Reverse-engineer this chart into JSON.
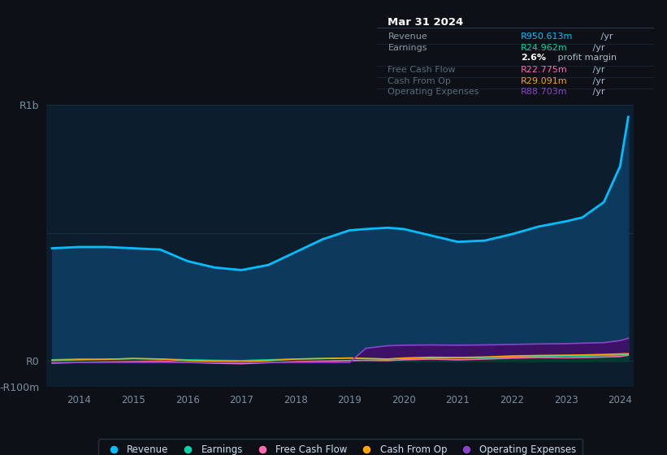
{
  "bg_color": "#0d1117",
  "chart_area_color": "#0c1e2e",
  "years": [
    2013.5,
    2014,
    2014.5,
    2015,
    2015.5,
    2016,
    2016.5,
    2017,
    2017.5,
    2018,
    2018.5,
    2019,
    2019.3,
    2019.7,
    2020,
    2020.5,
    2021,
    2021.5,
    2022,
    2022.5,
    2023,
    2023.3,
    2023.7,
    2024,
    2024.15
  ],
  "revenue": [
    440,
    445,
    445,
    440,
    435,
    390,
    365,
    355,
    375,
    425,
    475,
    510,
    515,
    520,
    515,
    490,
    465,
    470,
    495,
    525,
    545,
    560,
    620,
    760,
    952
  ],
  "earnings": [
    5,
    8,
    7,
    10,
    8,
    5,
    3,
    2,
    5,
    8,
    10,
    12,
    10,
    8,
    10,
    12,
    12,
    14,
    16,
    18,
    20,
    20,
    22,
    24,
    25
  ],
  "free_cash_flow": [
    -8,
    -5,
    -3,
    -2,
    0,
    -5,
    -8,
    -10,
    -6,
    -2,
    0,
    2,
    3,
    2,
    5,
    8,
    5,
    8,
    12,
    14,
    13,
    14,
    16,
    18,
    23
  ],
  "cash_from_op": [
    3,
    5,
    7,
    10,
    8,
    2,
    0,
    -2,
    2,
    8,
    10,
    12,
    10,
    8,
    12,
    15,
    14,
    16,
    20,
    22,
    23,
    24,
    26,
    28,
    29
  ],
  "operating_expenses": [
    -5,
    -5,
    -5,
    -5,
    -5,
    -5,
    -5,
    -5,
    -5,
    -5,
    -5,
    -5,
    50,
    60,
    62,
    63,
    62,
    63,
    65,
    67,
    68,
    70,
    72,
    80,
    89
  ],
  "revenue_color": "#00bfff",
  "earnings_color": "#00d4aa",
  "free_cash_flow_color": "#ff69b4",
  "cash_from_op_color": "#ffa500",
  "operating_expenses_color": "#8844cc",
  "fill_revenue_color": "#0d3a5c",
  "fill_opex_color": "#3d1166",
  "fill_cashop_color": "#4a2800",
  "fill_fcf_color": "#3a0a20",
  "fill_earnings_color": "#003d30",
  "ylim_min": -100,
  "ylim_max": 1000,
  "yticks_positions": [
    -100,
    0,
    500,
    1000
  ],
  "ytick_labels": [
    "-R100m",
    "R0",
    "",
    "R1b"
  ],
  "xlabel_years": [
    2014,
    2015,
    2016,
    2017,
    2018,
    2019,
    2020,
    2021,
    2022,
    2023,
    2024
  ],
  "grid_color": "#1e3a50",
  "annotation": {
    "title": "Mar 31 2024",
    "rows": [
      {
        "label": "Revenue",
        "value": "R950.613m",
        "unit": " /yr",
        "value_color": "#00bfff",
        "dim": false
      },
      {
        "label": "Earnings",
        "value": "R24.962m",
        "unit": " /yr",
        "value_color": "#00d4aa",
        "dim": false
      },
      {
        "label": "",
        "value": "2.6%",
        "unit": " profit margin",
        "value_color": "#ffffff",
        "dim": false,
        "bold": true
      },
      {
        "label": "Free Cash Flow",
        "value": "R22.775m",
        "unit": " /yr",
        "value_color": "#ff69b4",
        "dim": true
      },
      {
        "label": "Cash From Op",
        "value": "R29.091m",
        "unit": " /yr",
        "value_color": "#ffa500",
        "dim": true
      },
      {
        "label": "Operating Expenses",
        "value": "R88.703m",
        "unit": " /yr",
        "value_color": "#8844cc",
        "dim": true
      }
    ]
  },
  "legend": [
    {
      "label": "Revenue",
      "color": "#00bfff"
    },
    {
      "label": "Earnings",
      "color": "#00d4aa"
    },
    {
      "label": "Free Cash Flow",
      "color": "#ff69b4"
    },
    {
      "label": "Cash From Op",
      "color": "#ffa500"
    },
    {
      "label": "Operating Expenses",
      "color": "#8844cc"
    }
  ]
}
